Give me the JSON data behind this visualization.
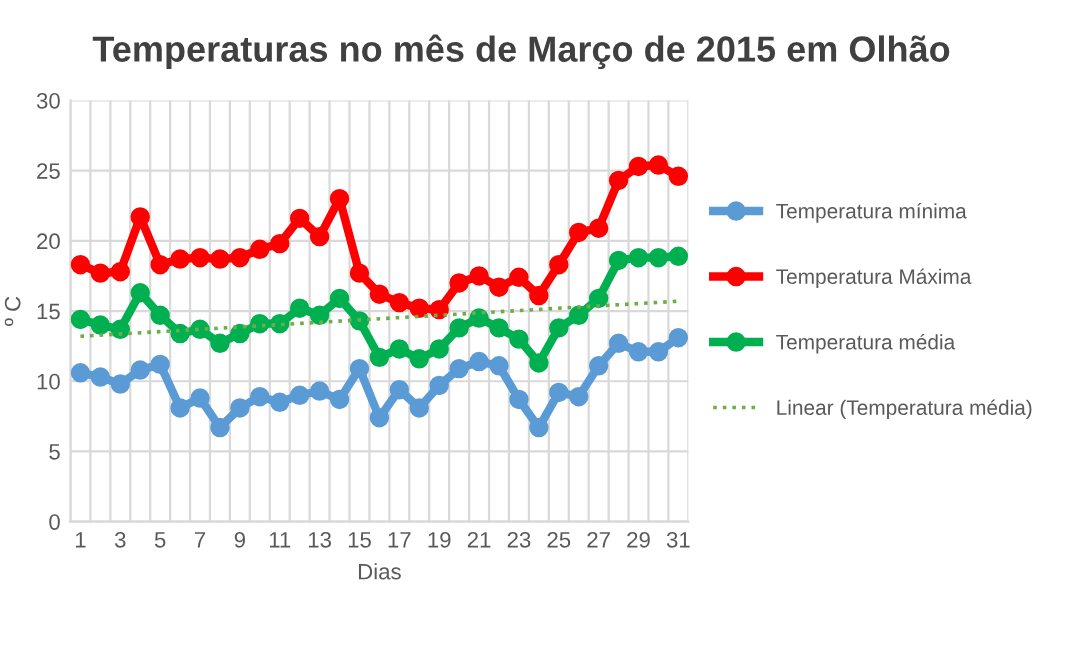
{
  "chart_data": {
    "type": "line",
    "title": "Temperaturas no mês de Março de 2015 em Olhão",
    "xlabel": "Dias",
    "ylabel": "º C",
    "categories": [
      "1",
      null,
      "3",
      null,
      "5",
      null,
      "7",
      null,
      "9",
      null,
      "11",
      null,
      "13",
      null,
      "15",
      null,
      "17",
      null,
      "19",
      null,
      "21",
      null,
      "23",
      null,
      "25",
      null,
      "27",
      null,
      "29",
      null,
      "31"
    ],
    "series": [
      {
        "name": "Temperatura mínima",
        "color": "#5b9bd5",
        "marker": "circle",
        "line_style": "solid",
        "values": [
          10.6,
          10.3,
          9.8,
          10.8,
          11.2,
          8.1,
          8.8,
          6.7,
          8.1,
          8.9,
          8.5,
          9.0,
          9.3,
          8.7,
          10.9,
          7.4,
          9.4,
          8.1,
          9.7,
          10.9,
          11.4,
          11.1,
          8.7,
          6.7,
          9.2,
          8.9,
          11.1,
          12.7,
          12.1,
          12.1,
          13.1
        ]
      },
      {
        "name": "Temperatura Máxima",
        "color": "#ff0000",
        "marker": "circle",
        "line_style": "solid",
        "values": [
          18.3,
          17.7,
          17.8,
          21.7,
          18.3,
          18.7,
          18.8,
          18.7,
          18.8,
          19.4,
          19.8,
          21.6,
          20.3,
          23.0,
          17.7,
          16.2,
          15.6,
          15.2,
          15.1,
          17.0,
          17.5,
          16.7,
          17.4,
          16.1,
          18.3,
          20.6,
          20.9,
          24.3,
          25.3,
          25.4,
          24.6
        ]
      },
      {
        "name": "Temperatura média",
        "color": "#00b050",
        "marker": "circle",
        "line_style": "solid",
        "values": [
          14.4,
          14.0,
          13.7,
          16.3,
          14.7,
          13.4,
          13.7,
          12.7,
          13.4,
          14.1,
          14.1,
          15.2,
          14.7,
          15.9,
          14.3,
          11.7,
          12.3,
          11.6,
          12.3,
          13.8,
          14.5,
          13.8,
          13.0,
          11.3,
          13.8,
          14.7,
          15.9,
          18.6,
          18.8,
          18.8,
          18.9
        ]
      },
      {
        "name": "Linear (Temperatura média)",
        "color": "#70ad47",
        "marker": "none",
        "line_style": "dotted",
        "x": [
          "1",
          "31"
        ],
        "values": [
          13.2,
          15.7
        ]
      }
    ],
    "ylim": [
      0,
      30
    ],
    "yticks": [
      0,
      5,
      10,
      15,
      20,
      25,
      30
    ],
    "grid": true,
    "legend": "right"
  }
}
